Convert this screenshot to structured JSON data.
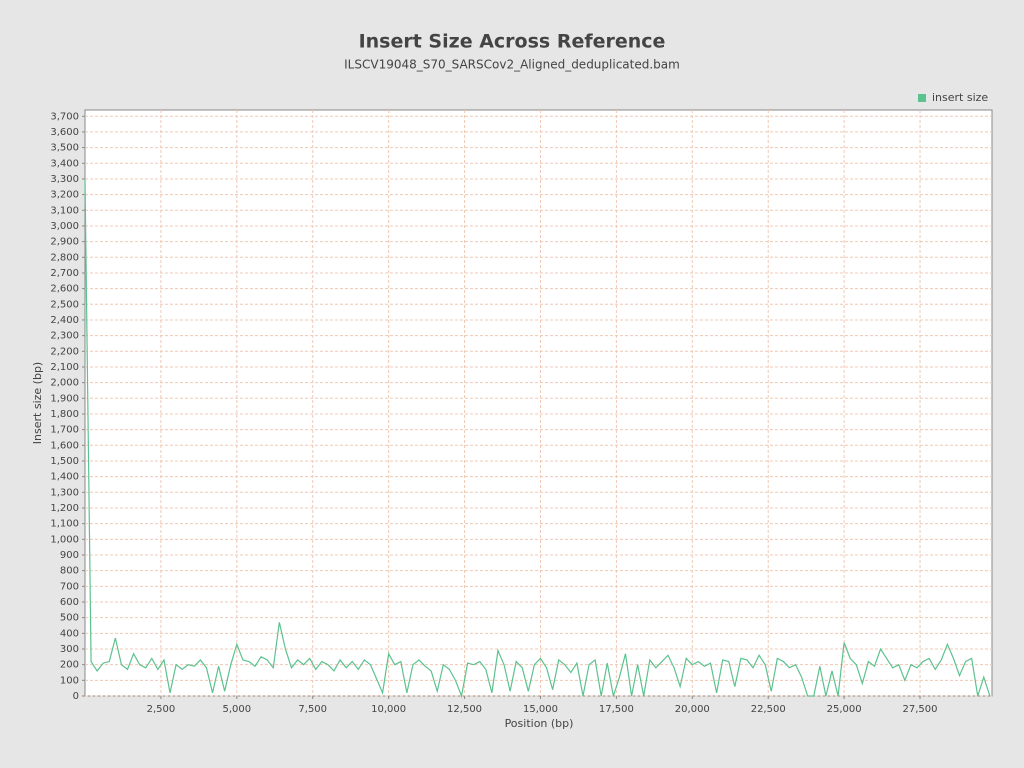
{
  "chart_data": {
    "type": "line",
    "title": "Insert Size Across Reference",
    "subtitle": "ILSCV19048_S70_SARSCov2_Aligned_deduplicated.bam",
    "xlabel": "Position (bp)",
    "ylabel": "Insert size (bp)",
    "legend": "top-right",
    "grid": true,
    "x": [
      0,
      200,
      400,
      600,
      800,
      1000,
      1200,
      1400,
      1600,
      1800,
      2000,
      2200,
      2400,
      2600,
      2800,
      3000,
      3200,
      3400,
      3600,
      3800,
      4000,
      4200,
      4400,
      4600,
      4800,
      5000,
      5200,
      5400,
      5600,
      5800,
      6000,
      6200,
      6400,
      6600,
      6800,
      7000,
      7200,
      7400,
      7600,
      7800,
      8000,
      8200,
      8400,
      8600,
      8800,
      9000,
      9200,
      9400,
      9600,
      9800,
      10000,
      10200,
      10400,
      10600,
      10800,
      11000,
      11200,
      11400,
      11600,
      11800,
      12000,
      12200,
      12400,
      12600,
      12800,
      13000,
      13200,
      13400,
      13600,
      13800,
      14000,
      14200,
      14400,
      14600,
      14800,
      15000,
      15200,
      15400,
      15600,
      15800,
      16000,
      16200,
      16400,
      16600,
      16800,
      17000,
      17200,
      17400,
      17600,
      17800,
      18000,
      18200,
      18400,
      18600,
      18800,
      19000,
      19200,
      19400,
      19600,
      19800,
      20000,
      20200,
      20400,
      20600,
      20800,
      21000,
      21200,
      21400,
      21600,
      21800,
      22000,
      22200,
      22400,
      22600,
      22800,
      23000,
      23200,
      23400,
      23600,
      23800,
      24000,
      24200,
      24400,
      24600,
      24800,
      25000,
      25200,
      25400,
      25600,
      25800,
      26000,
      26200,
      26400,
      26600,
      26800,
      27000,
      27200,
      27400,
      27600,
      27800,
      28000,
      28200,
      28400,
      28600,
      28800,
      29000,
      29200,
      29400,
      29600,
      29800
    ],
    "series": [
      {
        "name": "insert size",
        "color": "#5cc28f",
        "values": [
          3300,
          220,
          160,
          210,
          220,
          370,
          200,
          170,
          270,
          200,
          180,
          240,
          170,
          230,
          20,
          200,
          170,
          200,
          190,
          230,
          180,
          20,
          190,
          30,
          200,
          330,
          230,
          220,
          190,
          250,
          230,
          180,
          470,
          300,
          180,
          230,
          200,
          240,
          170,
          220,
          200,
          160,
          230,
          180,
          220,
          170,
          230,
          200,
          110,
          20,
          270,
          200,
          220,
          20,
          200,
          230,
          190,
          160,
          30,
          200,
          170,
          100,
          0,
          210,
          200,
          220,
          170,
          20,
          290,
          200,
          30,
          220,
          180,
          30,
          200,
          240,
          180,
          40,
          230,
          200,
          150,
          210,
          0,
          200,
          230,
          0,
          210,
          0,
          120,
          270,
          0,
          200,
          0,
          230,
          180,
          220,
          260,
          180,
          60,
          240,
          200,
          220,
          190,
          210,
          20,
          230,
          220,
          60,
          240,
          230,
          180,
          260,
          200,
          30,
          240,
          220,
          180,
          200,
          120,
          0,
          0,
          190,
          0,
          160,
          0,
          340,
          240,
          200,
          80,
          220,
          190,
          300,
          240,
          180,
          200,
          100,
          200,
          180,
          220,
          240,
          170,
          230,
          330,
          240,
          130,
          220,
          240,
          0,
          120,
          0
        ]
      }
    ],
    "xlim": [
      0,
      29870
    ],
    "ylim": [
      0,
      3740
    ],
    "xticks": [
      {
        "value": 2500,
        "label": "2,500"
      },
      {
        "value": 5000,
        "label": "5,000"
      },
      {
        "value": 7500,
        "label": "7,500"
      },
      {
        "value": 10000,
        "label": "10,000"
      },
      {
        "value": 12500,
        "label": "12,500"
      },
      {
        "value": 15000,
        "label": "15,000"
      },
      {
        "value": 17500,
        "label": "17,500"
      },
      {
        "value": 20000,
        "label": "20,000"
      },
      {
        "value": 22500,
        "label": "22,500"
      },
      {
        "value": 25000,
        "label": "25,000"
      },
      {
        "value": 27500,
        "label": "27,500"
      }
    ],
    "yticks": [
      0,
      100,
      200,
      300,
      400,
      500,
      600,
      700,
      800,
      900,
      {
        "value": 1000,
        "label": "1,000"
      },
      {
        "value": 1100,
        "label": "1,100"
      },
      {
        "value": 1200,
        "label": "1,200"
      },
      {
        "value": 1300,
        "label": "1,300"
      },
      {
        "value": 1400,
        "label": "1,400"
      },
      {
        "value": 1500,
        "label": "1,500"
      },
      {
        "value": 1600,
        "label": "1,600"
      },
      {
        "value": 1700,
        "label": "1,700"
      },
      {
        "value": 1800,
        "label": "1,800"
      },
      {
        "value": 1900,
        "label": "1,900"
      },
      {
        "value": 2000,
        "label": "2,000"
      },
      {
        "value": 2100,
        "label": "2,100"
      },
      {
        "value": 2200,
        "label": "2,200"
      },
      {
        "value": 2300,
        "label": "2,300"
      },
      {
        "value": 2400,
        "label": "2,400"
      },
      {
        "value": 2500,
        "label": "2,500"
      },
      {
        "value": 2600,
        "label": "2,600"
      },
      {
        "value": 2700,
        "label": "2,700"
      },
      {
        "value": 2800,
        "label": "2,800"
      },
      {
        "value": 2900,
        "label": "2,900"
      },
      {
        "value": 3000,
        "label": "3,000"
      },
      {
        "value": 3100,
        "label": "3,100"
      },
      {
        "value": 3200,
        "label": "3,200"
      },
      {
        "value": 3300,
        "label": "3,300"
      },
      {
        "value": 3400,
        "label": "3,400"
      },
      {
        "value": 3500,
        "label": "3,500"
      },
      {
        "value": 3600,
        "label": "3,600"
      },
      {
        "value": 3700,
        "label": "3,700"
      }
    ]
  }
}
